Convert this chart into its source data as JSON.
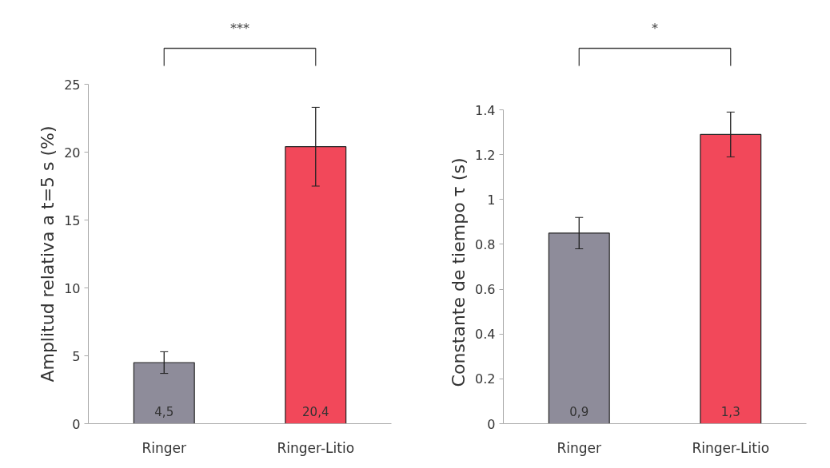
{
  "chart_data": [
    {
      "type": "bar",
      "categories": [
        "Ringer",
        "Ringer-Litio"
      ],
      "values": [
        4.5,
        20.4
      ],
      "colors": [
        "#8e8c9a",
        "#f2485a"
      ],
      "errors": [
        0.8,
        2.9
      ],
      "value_labels": [
        "4,5",
        "20,4"
      ],
      "ylabel": "Amplitud relativa a t=5 s (%)",
      "ylim": [
        0,
        25
      ],
      "yticks": [
        0,
        5,
        10,
        15,
        20,
        25
      ],
      "annotations": [
        "***"
      ],
      "grid": false
    },
    {
      "type": "bar",
      "categories": [
        "Ringer",
        "Ringer-Litio"
      ],
      "values": [
        0.85,
        1.29
      ],
      "colors": [
        "#8e8c9a",
        "#f2485a"
      ],
      "errors": [
        0.07,
        0.1
      ],
      "value_labels": [
        "0,9",
        "1,3"
      ],
      "ylabel": "Constante de tiempo  τ  (s)",
      "ylim": [
        0,
        1.4
      ],
      "yticks": [
        0,
        0.2,
        0.4,
        0.6,
        0.8,
        1,
        1.2,
        1.4
      ],
      "annotations": [
        "*"
      ],
      "grid": false
    }
  ]
}
